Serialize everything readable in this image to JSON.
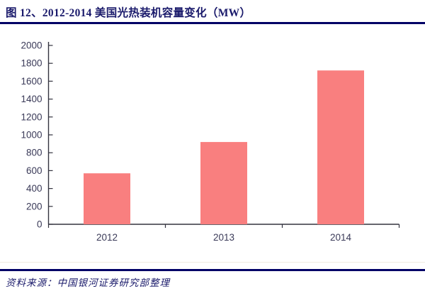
{
  "header": {
    "title": "图 12、2012-2014 美国光热装机容量变化（MW）"
  },
  "footer": {
    "source": "资料来源：中国银河证券研究部整理"
  },
  "colors": {
    "bar": "#f97f7f",
    "axis_line": "#33333f",
    "tick_label": "#3a3a58",
    "rule_navy": "#000066",
    "title_navy": "#1a1a6b"
  },
  "chart_data": {
    "type": "bar",
    "title": "图 12、2012-2014 美国光热装机容量变化（MW）",
    "categories": [
      "2012",
      "2013",
      "2014"
    ],
    "values": [
      570,
      920,
      1720
    ],
    "xlabel": "",
    "ylabel": "",
    "ylim": [
      0,
      2000
    ],
    "ytick_step": 200,
    "grid": false,
    "legend": "none",
    "bar_color": "#f97f7f"
  }
}
